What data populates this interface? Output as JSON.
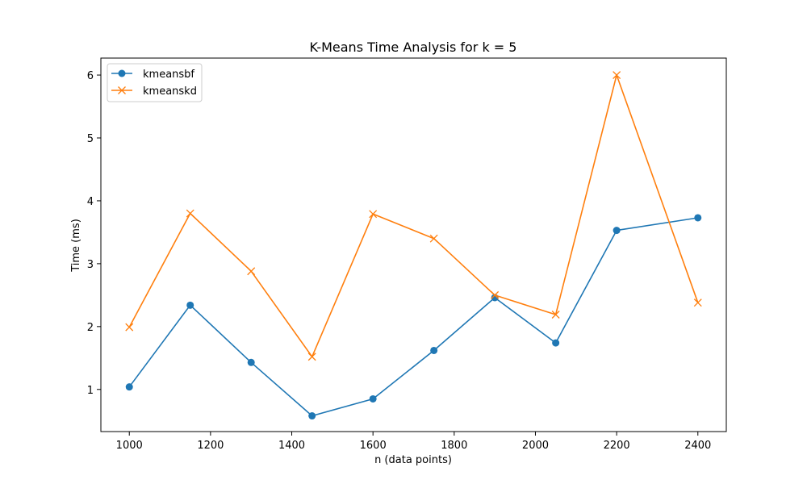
{
  "chart_data": {
    "type": "line",
    "title": "K-Means Time Analysis for k = 5",
    "xlabel": "n (data points)",
    "ylabel": "Time (ms)",
    "x": [
      1000,
      1150,
      1300,
      1450,
      1600,
      1750,
      1900,
      2050,
      2200,
      2400
    ],
    "xlim": [
      930,
      2470
    ],
    "ylim": [
      0.33,
      6.27
    ],
    "x_ticks": [
      1000,
      1200,
      1400,
      1600,
      1800,
      2000,
      2200,
      2400
    ],
    "y_ticks": [
      1,
      2,
      3,
      4,
      5,
      6
    ],
    "grid": false,
    "legend_position": "top-left",
    "series": [
      {
        "name": "kmeansbf",
        "color": "#1f77b4",
        "marker": "circle",
        "values": [
          1.04,
          2.34,
          1.43,
          0.58,
          0.85,
          1.62,
          2.46,
          1.74,
          3.53,
          3.73
        ]
      },
      {
        "name": "kmeanskd",
        "color": "#ff7f0e",
        "marker": "x",
        "values": [
          1.99,
          3.8,
          2.88,
          1.52,
          3.79,
          3.4,
          2.5,
          2.19,
          6.0,
          2.38
        ]
      }
    ]
  }
}
